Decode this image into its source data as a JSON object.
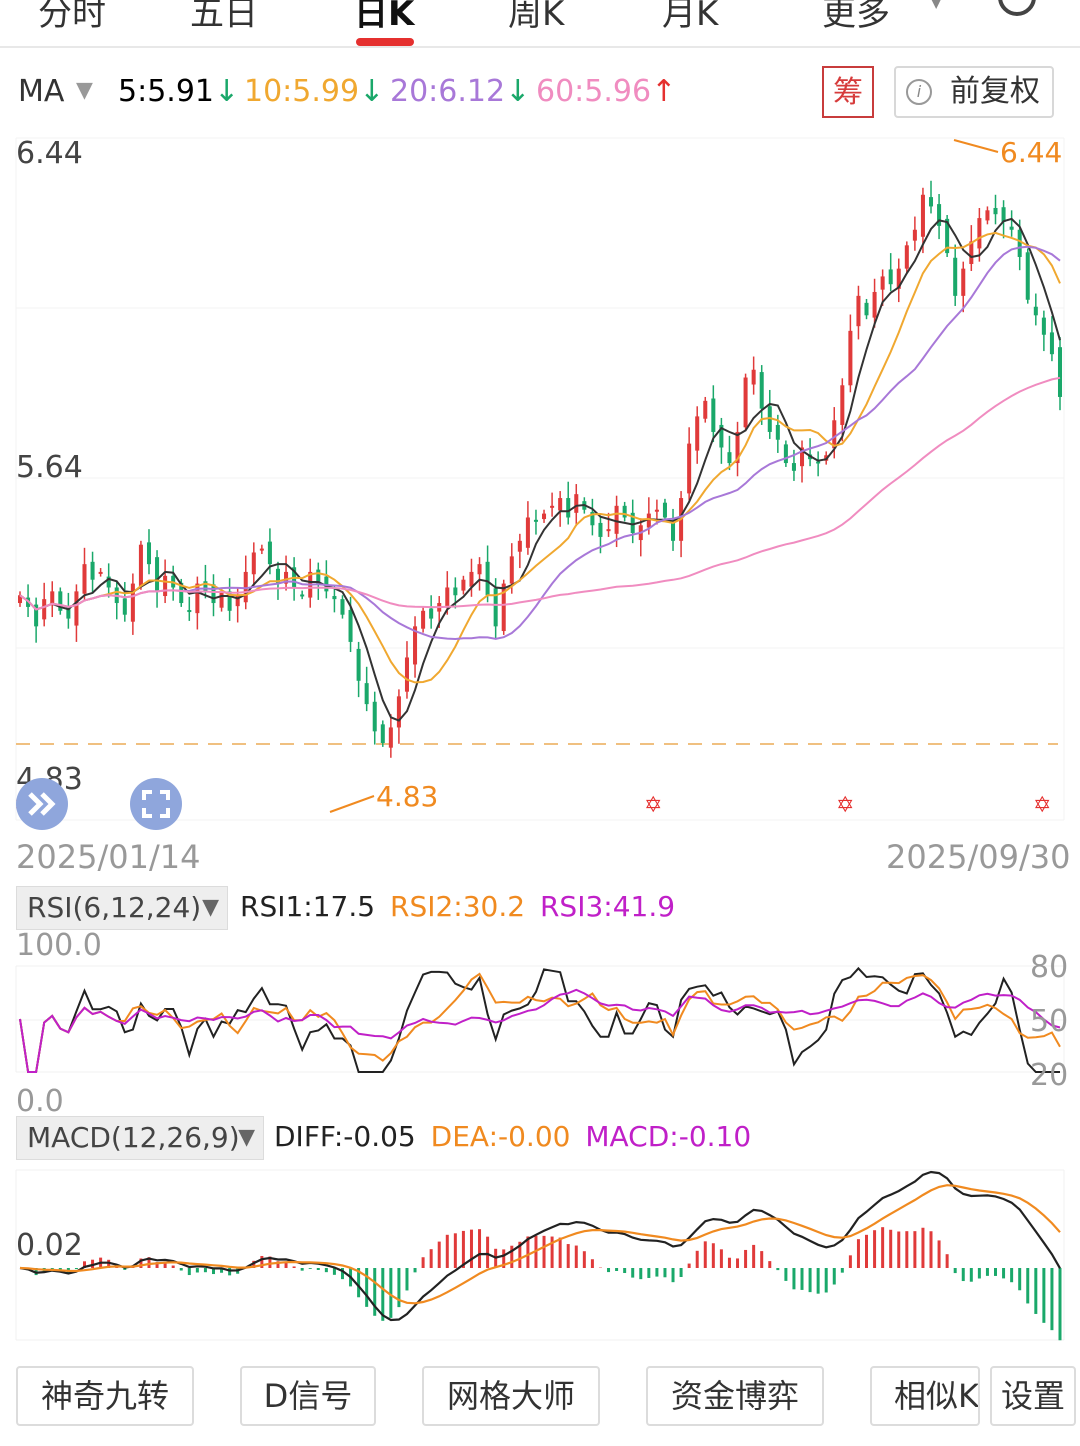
{
  "tabs": [
    {
      "label": "分时",
      "active": false
    },
    {
      "label": "五日",
      "active": false
    },
    {
      "label": "日K",
      "active": true
    },
    {
      "label": "周K",
      "active": false
    },
    {
      "label": "月K",
      "active": false
    },
    {
      "label": "更多",
      "active": false
    }
  ],
  "icons": {
    "more": "chevron-down-icon",
    "settings": "gear-icon",
    "collapse": "double-chevron-icon",
    "fullscreen": "fullscreen-icon",
    "signal": "star-icon"
  },
  "ma": {
    "label": "MA",
    "items": [
      {
        "text": "5:5.91",
        "dir": "↓",
        "color": "#333333"
      },
      {
        "text": "10:5.99",
        "dir": "↓",
        "color": "#f0a830"
      },
      {
        "text": "20:6.12",
        "dir": "↓",
        "color": "#a878d8"
      },
      {
        "text": "60:5.96",
        "dir": "↑",
        "color": "#f08cc0"
      }
    ]
  },
  "buttons": {
    "chou": "筹",
    "fuquan": "前复权"
  },
  "main_chart": {
    "y_top_label": "6.44",
    "y_mid_label": "5.64",
    "y_bottom_label": "4.83",
    "high_marker": "6.44",
    "low_marker": "4.83",
    "start_date": "2025/01/14",
    "end_date": "2025/09/30"
  },
  "rsi": {
    "selector": "RSI(6,12,24)",
    "values": [
      {
        "text": "RSI1:17.5",
        "color": "#222222"
      },
      {
        "text": "RSI2:30.2",
        "color": "#f08a20"
      },
      {
        "text": "RSI3:41.9",
        "color": "#c020c8"
      }
    ],
    "left_top": "100.0",
    "left_bottom": "0.0",
    "right_labels": [
      "80",
      "50",
      "20"
    ]
  },
  "macd": {
    "selector": "MACD(12,26,9)",
    "values": [
      {
        "text": "DIFF:-0.05",
        "color": "#222222"
      },
      {
        "text": "DEA:-0.00",
        "color": "#f08a20"
      },
      {
        "text": "MACD:-0.10",
        "color": "#c020c8"
      }
    ],
    "left_label": "0.02"
  },
  "bottom_buttons": [
    "神奇九转",
    "D信号",
    "网格大师",
    "资金博弈",
    "相似K",
    "设置"
  ],
  "chart_data": {
    "type": "candlestick",
    "x_range": [
      "2025/01/14",
      "2025/09/30"
    ],
    "y_labels": [
      6.44,
      5.64,
      4.83
    ],
    "period_high": 6.44,
    "period_low": 4.83,
    "ma_latest": {
      "MA5": 5.91,
      "MA10": 5.99,
      "MA20": 6.12,
      "MA60": 5.96
    },
    "close_series": [
      5.3,
      5.27,
      5.22,
      5.29,
      5.31,
      5.26,
      5.24,
      5.31,
      5.38,
      5.34,
      5.36,
      5.32,
      5.28,
      5.25,
      5.33,
      5.43,
      5.38,
      5.31,
      5.35,
      5.32,
      5.28,
      5.26,
      5.33,
      5.31,
      5.28,
      5.31,
      5.26,
      5.3,
      5.36,
      5.41,
      5.42,
      5.38,
      5.33,
      5.36,
      5.32,
      5.3,
      5.36,
      5.33,
      5.31,
      5.29,
      5.25,
      5.18,
      5.08,
      5.02,
      4.95,
      4.92,
      4.96,
      5.04,
      5.14,
      5.22,
      5.26,
      5.24,
      5.28,
      5.32,
      5.3,
      5.34,
      5.36,
      5.38,
      5.3,
      5.22,
      5.33,
      5.4,
      5.44,
      5.5,
      5.49,
      5.51,
      5.53,
      5.55,
      5.5,
      5.56,
      5.52,
      5.48,
      5.45,
      5.47,
      5.53,
      5.5,
      5.46,
      5.48,
      5.51,
      5.52,
      5.5,
      5.44,
      5.55,
      5.69,
      5.76,
      5.8,
      5.72,
      5.68,
      5.64,
      5.72,
      5.86,
      5.88,
      5.78,
      5.72,
      5.7,
      5.64,
      5.62,
      5.68,
      5.65,
      5.64,
      5.66,
      5.75,
      5.84,
      5.98,
      6.07,
      6.02,
      6.08,
      6.12,
      6.1,
      6.14,
      6.2,
      6.24,
      6.33,
      6.3,
      6.25,
      6.18,
      6.07,
      6.14,
      6.21,
      6.27,
      6.29,
      6.28,
      6.26,
      6.24,
      6.17,
      6.06,
      6.02,
      5.97,
      5.92,
      5.81
    ],
    "rsi_latest": {
      "RSI1": 17.5,
      "RSI2": 30.2,
      "RSI3": 41.9
    },
    "rsi_range": [
      0,
      100
    ],
    "macd_latest": {
      "DIFF": -0.05,
      "DEA": -0.0,
      "MACD": -0.1
    }
  }
}
